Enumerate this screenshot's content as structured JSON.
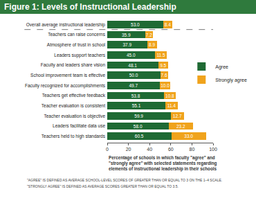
{
  "chart_data": {
    "type": "bar",
    "orientation": "horizontal",
    "stacked": true,
    "title": "Figure 1: Levels of Instructional Leadership",
    "categories": [
      "Overall average instructional leadership",
      "Teachers can raise concerns",
      "Atmosphere of trust in school",
      "Leaders support teachers",
      "Faculty and leaders share vision",
      "School improvement team is effective",
      "Faculty recognized for accomplishments",
      "Teachers get effective feedback",
      "Teacher evaluation is consistent",
      "Teacher evaluation is objective",
      "Leaders facilitate data use",
      "Teachers held to high standards"
    ],
    "series": [
      {
        "name": "Agree",
        "color": "#1f6a34",
        "values": [
          53.0,
          35.9,
          37.9,
          45.0,
          48.1,
          50.0,
          49.7,
          53.8,
          55.1,
          59.9,
          58.0,
          60.5
        ],
        "value_labels": [
          "53.0",
          "35.9",
          "37.9",
          "45.0",
          "48.1",
          "50.0",
          "49.7",
          "53.8",
          "55.1",
          "59.9",
          "58.0",
          "60.5"
        ]
      },
      {
        "name": "Strongly agree",
        "color": "#f0a31c",
        "values": [
          8.4,
          7.2,
          8.9,
          11.5,
          9.5,
          7.6,
          10.0,
          10.8,
          11.4,
          12.7,
          23.2,
          33.0
        ],
        "value_labels": [
          "8.4",
          "7.2",
          "8.9",
          "11.5",
          "9.5",
          "7.6",
          "10.0",
          "10.8",
          "11.4",
          "12.7",
          "23.2",
          "33.0"
        ]
      }
    ],
    "xlim": [
      0,
      100
    ],
    "xticks": [
      0,
      20,
      40,
      60,
      80,
      100
    ],
    "grid": false,
    "legend": "right",
    "data_labels": true,
    "caption": [
      "Percentage of schools in which faculty \"agree\" and",
      "\"strongly agree\" with selected statements regarding",
      "elements of instructional leadership in their schools"
    ],
    "footnotes": [
      "\"AGREE\" IS DEFINED AS AVERAGE SCHOOL-LEVEL SCORES OF GREATER THAN OR EQUAL TO 3 ON THE 1–4 SCALE.",
      "\"STRONGLY AGREE\" IS DEFINED AS AVERAGE SCORES GREATER THAN OR EQUAL TO 3.5."
    ]
  }
}
